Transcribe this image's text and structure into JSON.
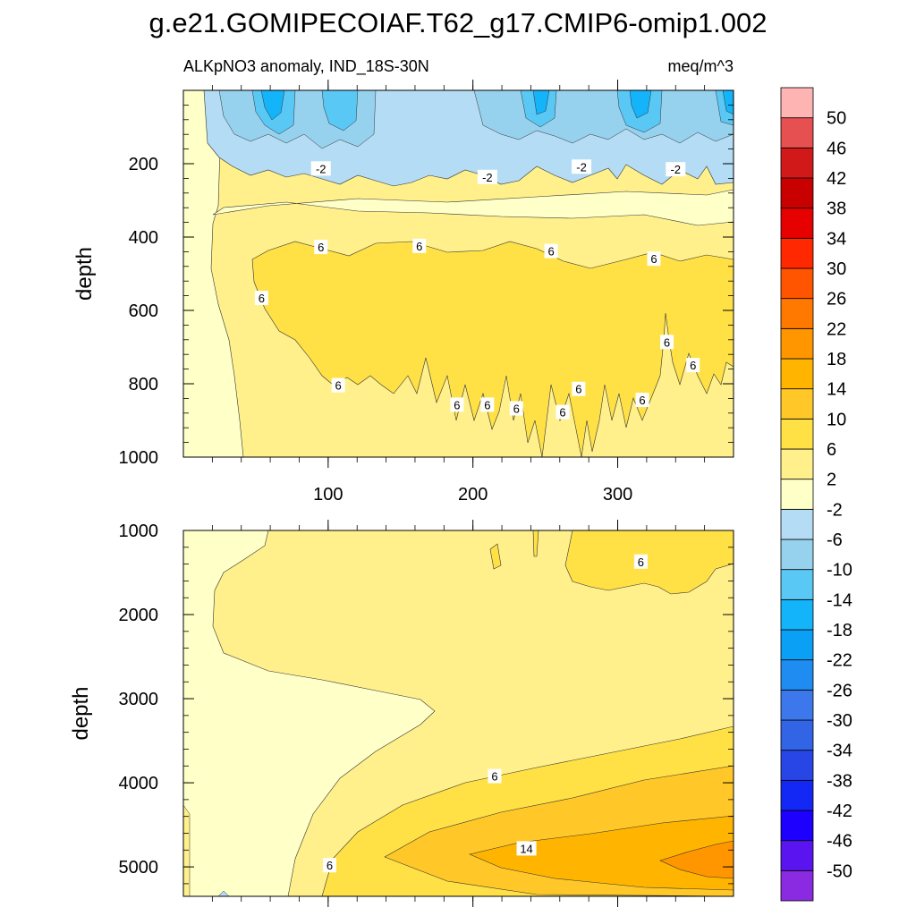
{
  "title": "g.e21.GOMIPECOIAF.T62_g17.CMIP6-omip1.002",
  "chart_data": {
    "type": "contour",
    "variable": "ALKpNO3 anomaly, IND_18S-30N",
    "units": "meq/m^3",
    "colorbar": {
      "levels": [
        -50,
        -46,
        -42,
        -38,
        -34,
        -30,
        -26,
        -22,
        -18,
        -14,
        -10,
        -6,
        -2,
        2,
        6,
        10,
        14,
        18,
        22,
        26,
        30,
        34,
        38,
        42,
        46,
        50
      ],
      "colors": [
        "#8a2be2",
        "#5a14f0",
        "#1e00ff",
        "#1428f5",
        "#2846e6",
        "#3264e6",
        "#3c78eb",
        "#1e8cf0",
        "#0aa0f5",
        "#14b4fa",
        "#5ac8f5",
        "#96d2ee",
        "#b4dcf5",
        "#ffffc8",
        "#fff08c",
        "#ffe146",
        "#ffc828",
        "#ffb400",
        "#ff9600",
        "#ff7800",
        "#ff5500",
        "#ff2800",
        "#e60000",
        "#c80000",
        "#d21919",
        "#e65050",
        "#ffb4b4"
      ]
    },
    "panels": [
      {
        "name": "upper",
        "ylabel": "depth",
        "ylim": [
          0,
          1000
        ],
        "yticks": [
          200,
          400,
          600,
          800,
          1000
        ],
        "xlim": [
          0,
          380
        ],
        "xticks": [
          100,
          200,
          300
        ],
        "contour_labels": [
          {
            "text": "-2",
            "x": 95,
            "y": 213
          },
          {
            "text": "-2",
            "x": 210,
            "y": 236
          },
          {
            "text": "-2",
            "x": 275,
            "y": 208
          },
          {
            "text": "-2",
            "x": 340,
            "y": 215
          },
          {
            "text": "6",
            "x": 95,
            "y": 427
          },
          {
            "text": "6",
            "x": 163,
            "y": 424
          },
          {
            "text": "6",
            "x": 254,
            "y": 438
          },
          {
            "text": "6",
            "x": 325,
            "y": 459
          },
          {
            "text": "6",
            "x": 54,
            "y": 566
          },
          {
            "text": "6",
            "x": 334,
            "y": 686
          },
          {
            "text": "6",
            "x": 352,
            "y": 749
          },
          {
            "text": "6",
            "x": 107,
            "y": 804
          },
          {
            "text": "6",
            "x": 273,
            "y": 814
          },
          {
            "text": "6",
            "x": 189,
            "y": 857
          },
          {
            "text": "6",
            "x": 210,
            "y": 857
          },
          {
            "text": "6",
            "x": 230,
            "y": 867
          },
          {
            "text": "6",
            "x": 262,
            "y": 877
          },
          {
            "text": "6",
            "x": 317,
            "y": 844
          }
        ]
      },
      {
        "name": "lower",
        "ylabel": "depth",
        "ylim": [
          1000,
          5350
        ],
        "yticks": [
          1000,
          2000,
          3000,
          4000,
          5000
        ],
        "xlim": [
          0,
          380
        ],
        "contour_labels": [
          {
            "text": "6",
            "x": 316,
            "y": 1370
          },
          {
            "text": "6",
            "x": 215,
            "y": 3920
          },
          {
            "text": "14",
            "x": 237,
            "y": 4780
          },
          {
            "text": "6",
            "x": 101,
            "y": 4980
          }
        ]
      }
    ]
  }
}
